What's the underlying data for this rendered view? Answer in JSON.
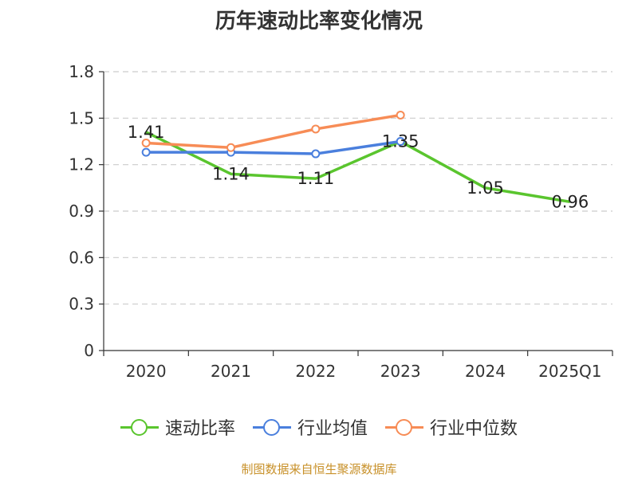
{
  "chart_data": {
    "type": "line",
    "title": "历年速动比率变化情况",
    "categories": [
      "2020",
      "2021",
      "2022",
      "2023",
      "2024",
      "2025Q1"
    ],
    "yticks": [
      "0",
      "0.3",
      "0.6",
      "0.9",
      "1.2",
      "1.5",
      "1.8"
    ],
    "ylim": [
      0,
      1.8
    ],
    "series": [
      {
        "name": "速动比率",
        "color": "#5ac52e",
        "values": [
          1.41,
          1.14,
          1.11,
          1.35,
          1.05,
          0.96
        ],
        "labels": [
          "1.41",
          "1.14",
          "1.11",
          "1.35",
          "1.05",
          "0.96"
        ]
      },
      {
        "name": "行业均值",
        "color": "#4a7fdd",
        "values": [
          1.28,
          1.28,
          1.27,
          1.35,
          null,
          null
        ]
      },
      {
        "name": "行业中位数",
        "color": "#f78c56",
        "values": [
          1.34,
          1.31,
          1.43,
          1.52,
          null,
          null
        ]
      }
    ],
    "source": "制图数据来自恒生聚源数据库"
  }
}
